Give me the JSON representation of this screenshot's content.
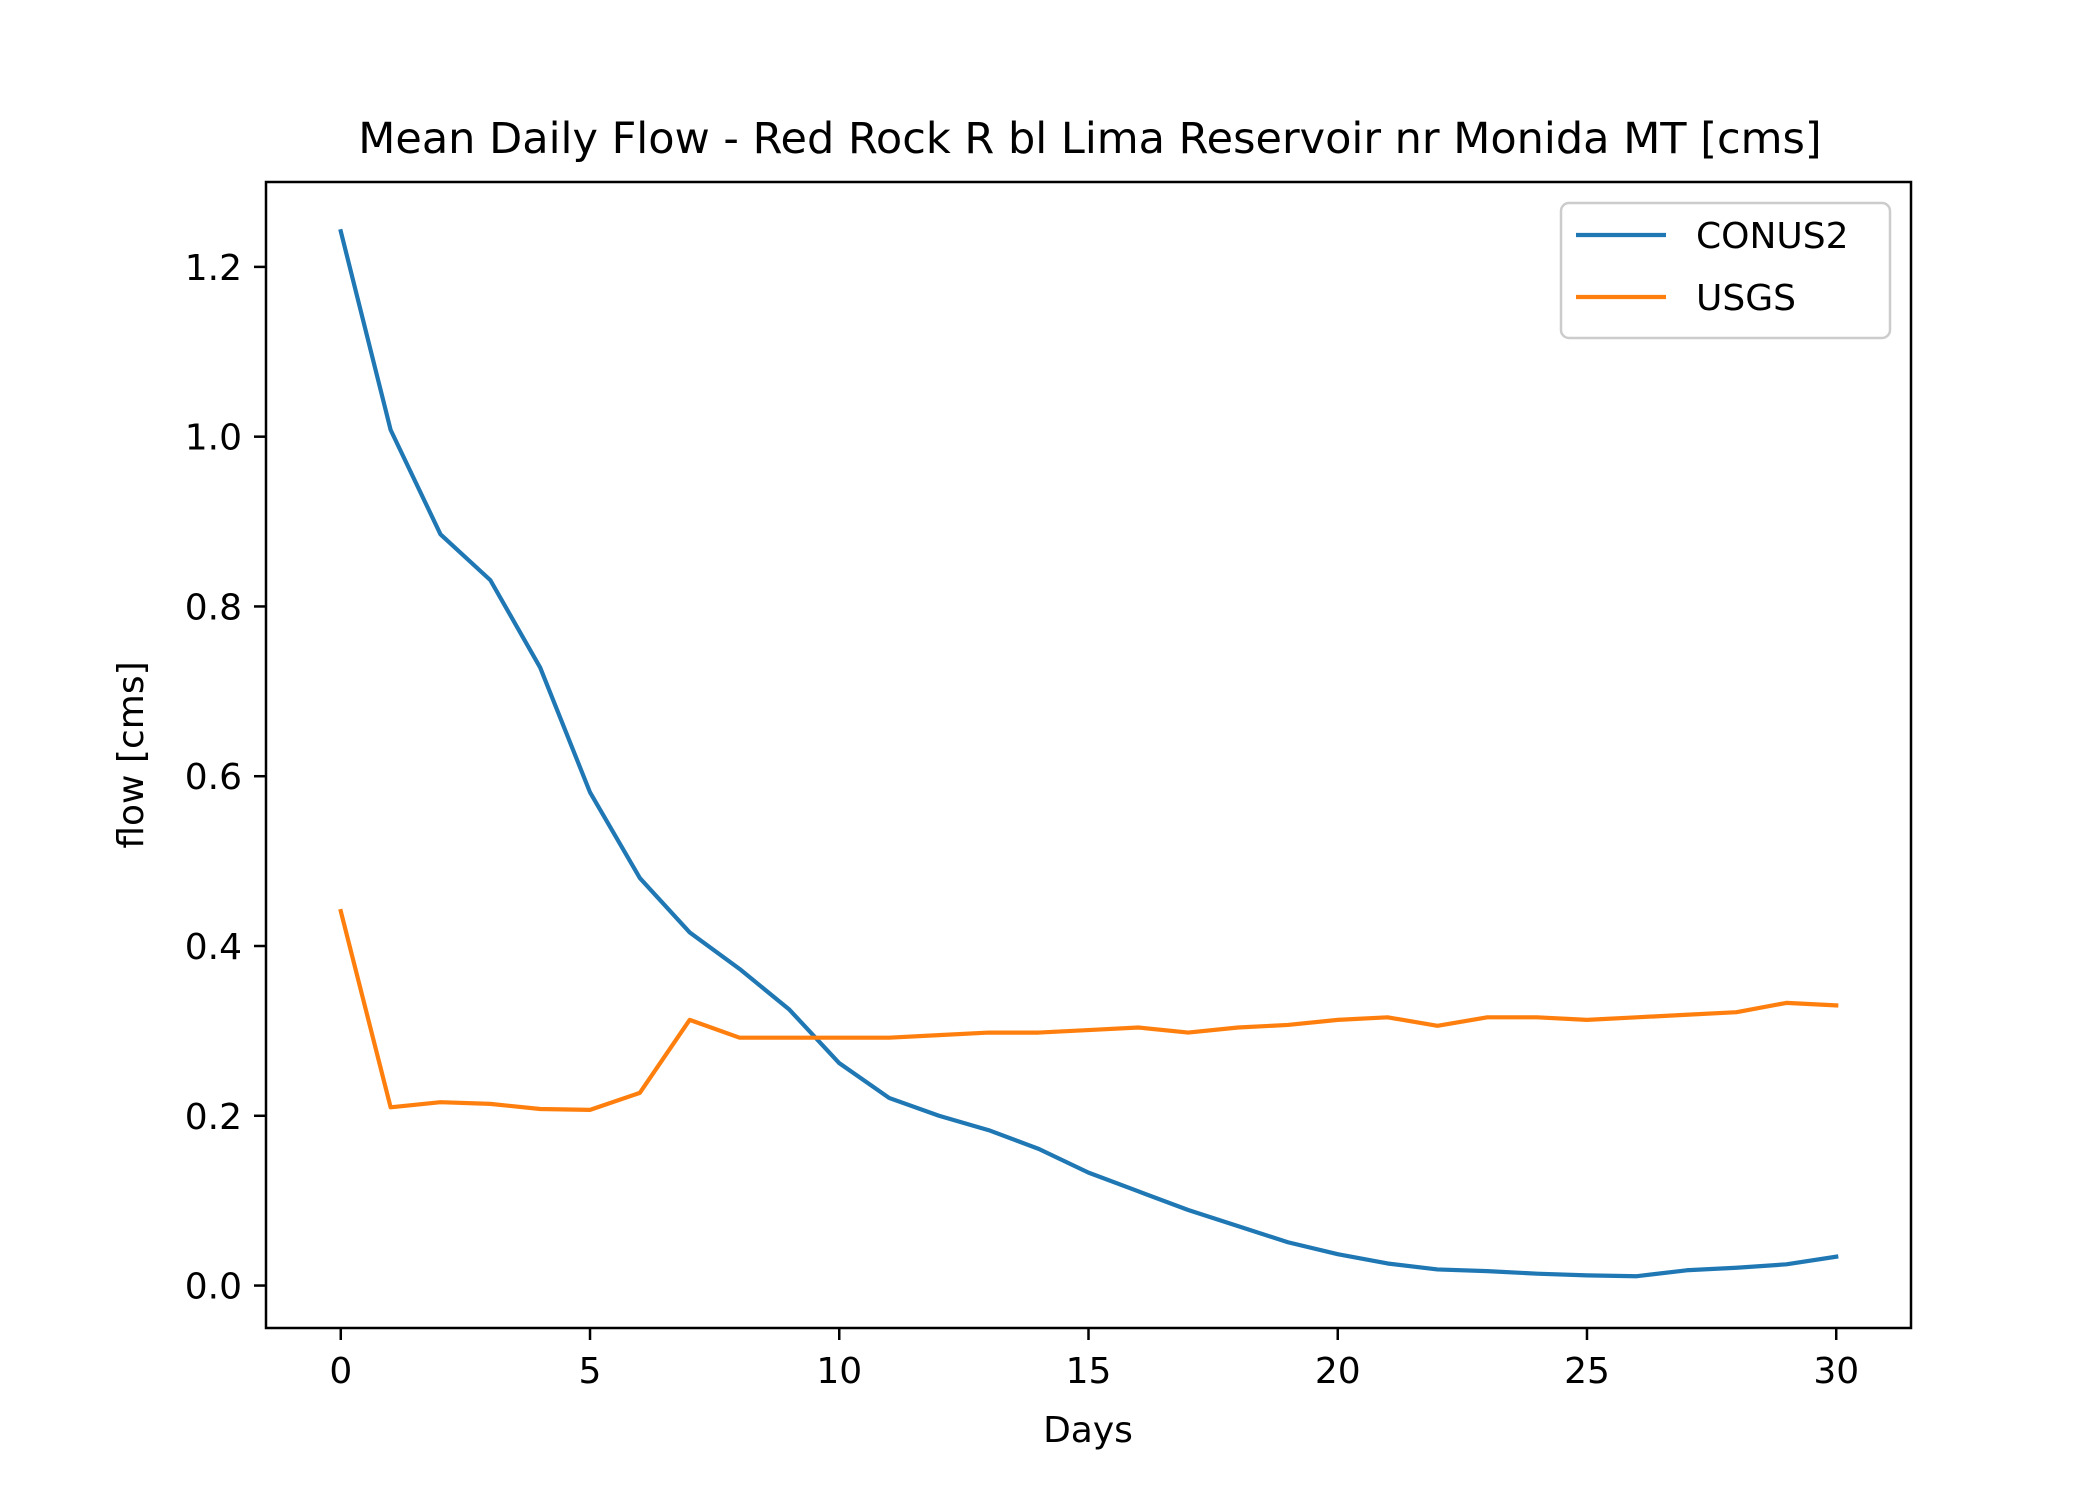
{
  "chart_data": {
    "type": "line",
    "title": "Mean Daily Flow - Red Rock R bl Lima Reservoir nr Monida MT [cms]",
    "xlabel": "Days",
    "ylabel": "flow [cms]",
    "xlim": [
      -1.5,
      31.5
    ],
    "ylim": [
      -0.05,
      1.3
    ],
    "xticks": [
      0,
      5,
      10,
      15,
      20,
      25,
      30
    ],
    "xtick_labels": [
      "0",
      "5",
      "10",
      "15",
      "20",
      "25",
      "30"
    ],
    "yticks": [
      0.0,
      0.2,
      0.4,
      0.6,
      0.8,
      1.0,
      1.2
    ],
    "ytick_labels": [
      "0.0",
      "0.2",
      "0.4",
      "0.6",
      "0.8",
      "1.0",
      "1.2"
    ],
    "grid": false,
    "legend_position": "top-right",
    "x": [
      0,
      1,
      2,
      3,
      4,
      5,
      6,
      7,
      8,
      9,
      10,
      11,
      12,
      13,
      14,
      15,
      16,
      17,
      18,
      19,
      20,
      21,
      22,
      23,
      24,
      25,
      26,
      27,
      28,
      29,
      30
    ],
    "series": [
      {
        "name": "CONUS2",
        "color": "#1f77b4",
        "values": [
          1.242,
          1.008,
          0.885,
          0.831,
          0.728,
          0.581,
          0.48,
          0.416,
          0.373,
          0.325,
          0.262,
          0.221,
          0.2,
          0.183,
          0.161,
          0.133,
          0.111,
          0.089,
          0.07,
          0.051,
          0.037,
          0.026,
          0.019,
          0.017,
          0.014,
          0.012,
          0.011,
          0.018,
          0.021,
          0.025,
          0.034
        ]
      },
      {
        "name": "USGS",
        "color": "#ff7f0e",
        "values": [
          0.441,
          0.21,
          0.216,
          0.214,
          0.208,
          0.207,
          0.227,
          0.313,
          0.292,
          0.292,
          0.292,
          0.292,
          0.295,
          0.298,
          0.298,
          0.301,
          0.304,
          0.298,
          0.304,
          0.307,
          0.313,
          0.316,
          0.306,
          0.316,
          0.316,
          0.313,
          0.316,
          0.319,
          0.322,
          0.333,
          0.33
        ]
      }
    ]
  }
}
